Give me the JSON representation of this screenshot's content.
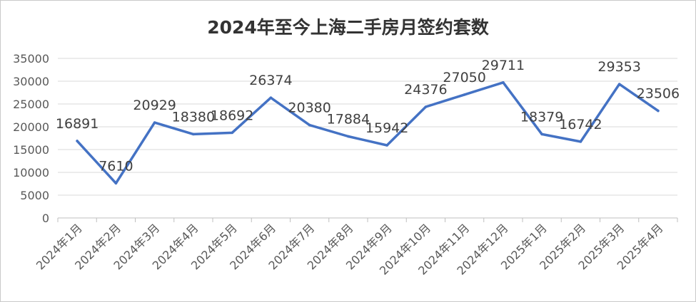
{
  "chart_data": {
    "type": "line",
    "title": "2024年至今上海二手房月签约套数",
    "xlabel": "",
    "ylabel": "",
    "categories": [
      "2024年1月",
      "2024年2月",
      "2024年3月",
      "2024年4月",
      "2024年5月",
      "2024年6月",
      "2024年7月",
      "2024年8月",
      "2024年9月",
      "2024年10月",
      "2024年11月",
      "2024年12月",
      "2025年1月",
      "2025年2月",
      "2025年3月",
      "2025年4月"
    ],
    "series": [
      {
        "values": [
          16891,
          7610,
          20929,
          18380,
          18692,
          26374,
          20380,
          17884,
          15942,
          24376,
          27050,
          29711,
          18379,
          16742,
          29353,
          23506
        ]
      }
    ],
    "ylim": [
      0,
      35000
    ],
    "yticks": [
      0,
      5000,
      10000,
      15000,
      20000,
      25000,
      30000,
      35000
    ],
    "grid": true,
    "legend": "none",
    "line_color": "#4472c4"
  }
}
